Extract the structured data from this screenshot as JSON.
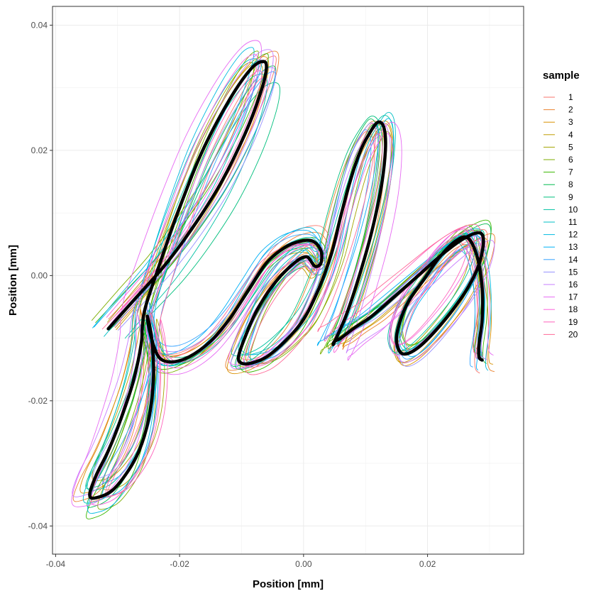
{
  "chart_data": {
    "type": "line",
    "xlabel": "Position [mm]",
    "ylabel": "Position [mm]",
    "xlim": [
      -0.0405,
      0.0355
    ],
    "ylim": [
      -0.0445,
      0.043
    ],
    "x_ticks": [
      -0.04,
      -0.02,
      0.0,
      0.02
    ],
    "x_tick_labels": [
      "-0.04",
      "-0.02",
      "0.00",
      "0.02"
    ],
    "y_ticks": [
      -0.04,
      -0.02,
      0.0,
      0.02,
      0.04
    ],
    "y_tick_labels": [
      "-0.04",
      "-0.02",
      "0.00",
      "0.02",
      "0.04"
    ],
    "grid": true,
    "legend": {
      "title": "sample",
      "placement": "right",
      "entries": [
        "1",
        "2",
        "3",
        "4",
        "5",
        "6",
        "7",
        "8",
        "9",
        "10",
        "11",
        "12",
        "13",
        "14",
        "15",
        "16",
        "17",
        "18",
        "19",
        "20"
      ],
      "colors": [
        "#F8766D",
        "#EA8331",
        "#D89000",
        "#C09B00",
        "#A3A500",
        "#7CAE00",
        "#39B600",
        "#00BB4E",
        "#00BF7D",
        "#00C1A3",
        "#00BFC4",
        "#00BAE0",
        "#00B0F6",
        "#35A2FF",
        "#9590FF",
        "#C77CFF",
        "#E76BF3",
        "#FA62DB",
        "#FF62BC",
        "#FF6A98"
      ]
    },
    "mean_series": {
      "color": "#000000",
      "x": [
        -0.0315,
        -0.027,
        -0.0225,
        -0.018,
        -0.0135,
        -0.0095,
        -0.007,
        -0.006,
        -0.0065,
        -0.0085,
        -0.012,
        -0.0165,
        -0.0205,
        -0.0235,
        -0.0255,
        -0.026,
        -0.0262,
        -0.0275,
        -0.0295,
        -0.0315,
        -0.0335,
        -0.0345,
        -0.0335,
        -0.0305,
        -0.027,
        -0.025,
        -0.0242,
        -0.0245,
        -0.0252,
        -0.0248,
        -0.0235,
        -0.0215,
        -0.0185,
        -0.015,
        -0.012,
        -0.009,
        -0.006,
        -0.003,
        -0.0005,
        0.0015,
        0.0028,
        0.0028,
        0.0018,
        0.0005,
        -0.0015,
        -0.0045,
        -0.0075,
        -0.0095,
        -0.0105,
        -0.01,
        -0.0085,
        -0.006,
        -0.003,
        0.0,
        0.0025,
        0.0045,
        0.006,
        0.0075,
        0.009,
        0.0105,
        0.012,
        0.013,
        0.0132,
        0.0125,
        0.011,
        0.009,
        0.007,
        0.0055,
        0.0048,
        0.005,
        0.006,
        0.008,
        0.011,
        0.0145,
        0.0185,
        0.0225,
        0.026,
        0.0285,
        0.029,
        0.028,
        0.0255,
        0.022,
        0.0185,
        0.016,
        0.015,
        0.0155,
        0.017,
        0.0195,
        0.022,
        0.0245,
        0.0265,
        0.028,
        0.0288,
        0.0288,
        0.0283,
        0.0283,
        0.0288
      ],
      "y": [
        -0.0085,
        -0.0035,
        0.0015,
        0.0075,
        0.0145,
        0.0225,
        0.029,
        0.033,
        0.0342,
        0.033,
        0.028,
        0.0195,
        0.0095,
        0.001,
        -0.005,
        -0.008,
        -0.011,
        -0.017,
        -0.023,
        -0.028,
        -0.032,
        -0.035,
        -0.0355,
        -0.034,
        -0.029,
        -0.023,
        -0.016,
        -0.01,
        -0.0065,
        -0.009,
        -0.0128,
        -0.0138,
        -0.013,
        -0.0105,
        -0.007,
        -0.0025,
        0.002,
        0.0045,
        0.0055,
        0.0055,
        0.004,
        0.002,
        0.0015,
        0.003,
        0.002,
        -0.001,
        -0.0055,
        -0.01,
        -0.013,
        -0.014,
        -0.014,
        -0.013,
        -0.0105,
        -0.007,
        -0.002,
        0.0035,
        0.0095,
        0.015,
        0.0195,
        0.0225,
        0.0245,
        0.0235,
        0.02,
        0.014,
        0.007,
        0.0,
        -0.006,
        -0.0095,
        -0.011,
        -0.0105,
        -0.01,
        -0.0085,
        -0.0065,
        -0.0035,
        0.0,
        0.0035,
        0.006,
        0.0068,
        0.005,
        0.001,
        -0.0035,
        -0.008,
        -0.0115,
        -0.0125,
        -0.0105,
        -0.0075,
        -0.004,
        -0.0005,
        0.003,
        0.0055,
        0.006,
        0.003,
        -0.002,
        -0.007,
        -0.011,
        -0.013,
        -0.0135
      ]
    }
  }
}
